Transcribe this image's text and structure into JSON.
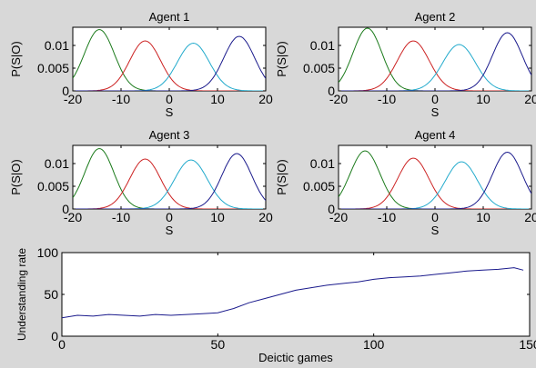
{
  "figure": {
    "background": "#d8d8d8",
    "axes_background": "#ffffff"
  },
  "chart_data": [
    {
      "type": "line",
      "title": "Agent 1",
      "xlabel": "S",
      "ylabel": "P(S|O)",
      "xlim": [
        -20,
        20
      ],
      "ylim": [
        0,
        0.014
      ],
      "xticks": [
        -20,
        -10,
        0,
        10,
        20
      ],
      "yticks": [
        0,
        0.005,
        0.01
      ],
      "ytick_labels": [
        "0",
        "0.005",
        "0.01"
      ],
      "grid": false,
      "series": [
        {
          "color": "#1a7a1a",
          "mean": -14.5,
          "sd": 3.1,
          "peak": 0.0135
        },
        {
          "color": "#cc2222",
          "mean": -5.0,
          "sd": 3.2,
          "peak": 0.011
        },
        {
          "color": "#22aacc",
          "mean": 5.0,
          "sd": 3.3,
          "peak": 0.0105
        },
        {
          "color": "#1a1a8c",
          "mean": 14.5,
          "sd": 3.2,
          "peak": 0.012
        }
      ]
    },
    {
      "type": "line",
      "title": "Agent 2",
      "xlabel": "S",
      "ylabel": "P(S|O)",
      "xlim": [
        -20,
        20
      ],
      "ylim": [
        0,
        0.014
      ],
      "xticks": [
        -20,
        -10,
        0,
        10,
        20
      ],
      "yticks": [
        0,
        0.005,
        0.01
      ],
      "ytick_labels": [
        "0",
        "0.005",
        "0.01"
      ],
      "grid": false,
      "series": [
        {
          "color": "#1a7a1a",
          "mean": -14.0,
          "sd": 3.0,
          "peak": 0.0138
        },
        {
          "color": "#cc2222",
          "mean": -4.5,
          "sd": 3.3,
          "peak": 0.011
        },
        {
          "color": "#22aacc",
          "mean": 5.0,
          "sd": 3.4,
          "peak": 0.0102
        },
        {
          "color": "#1a1a8c",
          "mean": 15.0,
          "sd": 3.1,
          "peak": 0.0128
        }
      ]
    },
    {
      "type": "line",
      "title": "Agent 3",
      "xlabel": "S",
      "ylabel": "P(S|O)",
      "xlim": [
        -20,
        20
      ],
      "ylim": [
        0,
        0.014
      ],
      "xticks": [
        -20,
        -10,
        0,
        10,
        20
      ],
      "yticks": [
        0,
        0.005,
        0.01
      ],
      "ytick_labels": [
        "0",
        "0.005",
        "0.01"
      ],
      "grid": false,
      "series": [
        {
          "color": "#1a7a1a",
          "mean": -14.5,
          "sd": 3.0,
          "peak": 0.0133
        },
        {
          "color": "#cc2222",
          "mean": -5.0,
          "sd": 3.2,
          "peak": 0.011
        },
        {
          "color": "#22aacc",
          "mean": 4.5,
          "sd": 3.4,
          "peak": 0.0108
        },
        {
          "color": "#1a1a8c",
          "mean": 14.0,
          "sd": 3.1,
          "peak": 0.0122
        }
      ]
    },
    {
      "type": "line",
      "title": "Agent 4",
      "xlabel": "S",
      "ylabel": "P(S|O)",
      "xlim": [
        -20,
        20
      ],
      "ylim": [
        0,
        0.014
      ],
      "xticks": [
        -20,
        -10,
        0,
        10,
        20
      ],
      "yticks": [
        0,
        0.005,
        0.01
      ],
      "ytick_labels": [
        "0",
        "0.005",
        "0.01"
      ],
      "grid": false,
      "series": [
        {
          "color": "#1a7a1a",
          "mean": -14.5,
          "sd": 3.1,
          "peak": 0.0128
        },
        {
          "color": "#cc2222",
          "mean": -4.5,
          "sd": 3.2,
          "peak": 0.0112
        },
        {
          "color": "#22aacc",
          "mean": 5.5,
          "sd": 3.3,
          "peak": 0.0104
        },
        {
          "color": "#1a1a8c",
          "mean": 15.0,
          "sd": 3.1,
          "peak": 0.0125
        }
      ]
    },
    {
      "type": "line",
      "title": "",
      "xlabel": "Deictic games",
      "ylabel": "Understanding rate",
      "xlim": [
        0,
        150
      ],
      "ylim": [
        0,
        100
      ],
      "xticks": [
        0,
        50,
        100,
        150
      ],
      "yticks": [
        0,
        50,
        100
      ],
      "ytick_labels": [
        "0",
        "50",
        "100"
      ],
      "grid": false,
      "series": [
        {
          "color": "#1a1a8c",
          "x": [
            0,
            5,
            10,
            15,
            20,
            25,
            30,
            35,
            40,
            45,
            50,
            55,
            60,
            65,
            70,
            75,
            80,
            85,
            90,
            95,
            100,
            105,
            110,
            115,
            120,
            125,
            130,
            135,
            140,
            145,
            148
          ],
          "y": [
            22,
            25,
            24,
            26,
            25,
            24,
            26,
            25,
            26,
            27,
            28,
            33,
            40,
            45,
            50,
            55,
            58,
            61,
            63,
            65,
            68,
            70,
            71,
            72,
            74,
            76,
            78,
            79,
            80,
            82,
            79
          ]
        }
      ]
    }
  ]
}
